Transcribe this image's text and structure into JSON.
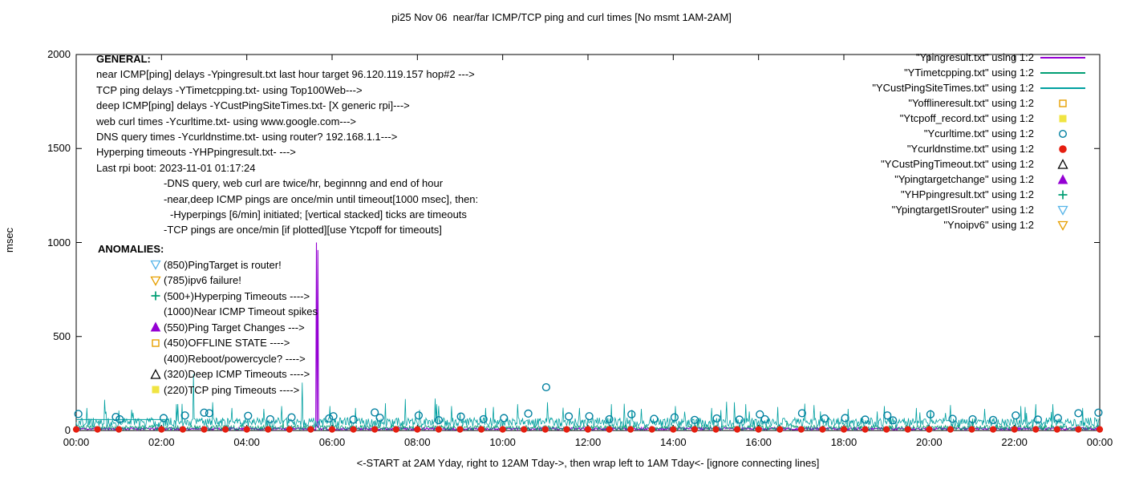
{
  "annotations": {
    "general_title": "GENERAL:",
    "general_lines": [
      {
        "indent": 0,
        "text": "near ICMP[ping] delays -Ypingresult.txt last hour target 96.120.119.157 hop#2 --->"
      },
      {
        "indent": 0,
        "text": "TCP ping delays -YTimetcpping.txt- using Top100Web--->"
      },
      {
        "indent": 0,
        "text": "deep ICMP[ping] delays -YCustPingSiteTimes.txt- [X generic rpi]--->"
      },
      {
        "indent": 0,
        "text": "web curl times -Ycurltime.txt- using www.google.com--->"
      },
      {
        "indent": 0,
        "text": "DNS query times -Ycurldnstime.txt- using router? 192.168.1.1--->"
      },
      {
        "indent": 0,
        "text": "Hyperping timeouts -YHPpingresult.txt- --->"
      },
      {
        "indent": 0,
        "text": "Last rpi boot: 2023-11-01 01:17:24"
      },
      {
        "indent": 1,
        "text": "-DNS query, web curl are twice/hr, beginnng and end of hour"
      },
      {
        "indent": 1,
        "text": "-near,deep ICMP pings are once/min until timeout[1000 msec], then:"
      },
      {
        "indent": 2,
        "text": "-Hyperpings [6/min] initiated; [vertical stacked] ticks are timeouts"
      },
      {
        "indent": 1,
        "text": "-TCP pings are once/min [if plotted][use Ytcpoff for timeouts]"
      }
    ],
    "anomalies_title": "ANOMALIES:",
    "anomaly_lines": [
      {
        "marker": "triangle-down-open",
        "color": "#56b4e9",
        "text": "(850)PingTarget is router!"
      },
      {
        "marker": "triangle-down-open",
        "color": "#e69f00",
        "text": "(785)ipv6 failure!"
      },
      {
        "marker": "plus",
        "color": "#009e73",
        "text": "(500+)Hyperping Timeouts ---->"
      },
      {
        "marker": "none",
        "color": "",
        "text": "(1000)Near ICMP Timeout spikes"
      },
      {
        "marker": "triangle-up-filled",
        "color": "#9400d3",
        "text": "(550)Ping Target Changes --->"
      },
      {
        "marker": "square-open",
        "color": "#e69f00",
        "text": "(450)OFFLINE STATE ---->"
      },
      {
        "marker": "none",
        "color": "",
        "text": "(400)Reboot/powercycle? ---->"
      },
      {
        "marker": "triangle-up-open",
        "color": "#000000",
        "text": "(320)Deep ICMP Timeouts ---->"
      },
      {
        "marker": "square-filled",
        "color": "#f0e442",
        "text": "(220)TCP ping Timeouts ---->"
      }
    ]
  },
  "legend": [
    {
      "label": "\"Ypingresult.txt\" using 1:2",
      "sample": "line",
      "color": "#9400d3"
    },
    {
      "label": "\"YTimetcpping.txt\" using 1:2",
      "sample": "line",
      "color": "#009e73"
    },
    {
      "label": "\"YCustPingSiteTimes.txt\" using 1:2",
      "sample": "line",
      "color": "#00a0a0"
    },
    {
      "label": "\"Yofflineresult.txt\" using 1:2",
      "sample": "square-open",
      "color": "#e69f00"
    },
    {
      "label": "\"Ytcpoff_record.txt\" using 1:2",
      "sample": "square-filled",
      "color": "#f0e442"
    },
    {
      "label": "\"Ycurltime.txt\" using 1:2",
      "sample": "circle-open",
      "color": "#0080a0"
    },
    {
      "label": "\"Ycurldnstime.txt\" using 1:2",
      "sample": "circle-filled",
      "color": "#e51e10"
    },
    {
      "label": "\"YCustPingTimeout.txt\" using 1:2",
      "sample": "triangle-up-open",
      "color": "#000000"
    },
    {
      "label": "\"Ypingtargetchange\" using 1:2",
      "sample": "triangle-up-filled",
      "color": "#9400d3"
    },
    {
      "label": "\"YHPpingresult.txt\" using 1:2",
      "sample": "plus",
      "color": "#009e73"
    },
    {
      "label": "\"YpingtargetISrouter\" using 1:2",
      "sample": "triangle-down-open",
      "color": "#56b4e9"
    },
    {
      "label": "\"Ynoipv6\" using 1:2",
      "sample": "triangle-down-open",
      "color": "#e69f00"
    }
  ],
  "chart_data": {
    "type": "line",
    "title": "pi25 Nov 06  near/far ICMP/TCP ping and curl times [No msmt 1AM-2AM]",
    "xlabel": "<-START at 2AM Yday, right to 12AM Tday->, then wrap left to 1AM Tday<- [ignore connecting lines]",
    "ylabel": "msec",
    "ylim": [
      0,
      2000
    ],
    "xlim_hours": [
      0,
      24
    ],
    "y_tick_values": [
      0,
      500,
      1000,
      1500,
      2000
    ],
    "x_tick_labels": [
      "00:00",
      "02:00",
      "04:00",
      "06:00",
      "08:00",
      "10:00",
      "12:00",
      "14:00",
      "16:00",
      "18:00",
      "20:00",
      "22:00",
      "00:00"
    ],
    "grid": false,
    "legend_position": "top-right",
    "series": [
      {
        "name": "Ypingresult.txt",
        "kind": "line",
        "color": "#9400d3",
        "width": 1.1,
        "seed": 11,
        "baseline": [
          3,
          16
        ],
        "spikes": [
          [
            5.63,
            1000
          ],
          [
            5.67,
            960
          ]
        ]
      },
      {
        "name": "YTimetcpping.txt",
        "kind": "line",
        "color": "#009e73",
        "width": 0.8,
        "seed": 23,
        "baseline": [
          2,
          28
        ],
        "spike_prob": 0.004,
        "spike_range": [
          40,
          80
        ],
        "spikes": []
      },
      {
        "name": "YCustPingSiteTimes.txt",
        "kind": "line",
        "color": "#00a0a0",
        "width": 0.8,
        "seed": 37,
        "baseline": [
          18,
          68
        ],
        "spike_prob": 0.012,
        "spike_range": [
          85,
          170
        ],
        "spikes": [
          [
            0.25,
            120
          ],
          [
            0.7,
            100
          ],
          [
            1.3,
            110
          ],
          [
            2.35,
            140
          ],
          [
            2.75,
            300
          ],
          [
            3.2,
            150
          ],
          [
            3.65,
            120
          ],
          [
            4.4,
            115
          ],
          [
            5.3,
            255
          ],
          [
            5.95,
            130
          ],
          [
            6.55,
            120
          ],
          [
            7.25,
            145
          ],
          [
            8.05,
            110
          ],
          [
            8.8,
            130
          ],
          [
            9.6,
            120
          ],
          [
            10.35,
            140
          ],
          [
            11.05,
            150
          ],
          [
            11.8,
            120
          ],
          [
            12.55,
            140
          ],
          [
            13.25,
            115
          ],
          [
            14.05,
            130
          ],
          [
            14.9,
            120
          ],
          [
            15.7,
            140
          ],
          [
            16.45,
            125
          ],
          [
            17.3,
            135
          ],
          [
            18.1,
            115
          ],
          [
            18.95,
            130
          ],
          [
            19.7,
            120
          ],
          [
            20.5,
            135
          ],
          [
            21.3,
            115
          ],
          [
            22.15,
            130
          ],
          [
            22.9,
            140
          ],
          [
            23.6,
            120
          ]
        ]
      },
      {
        "name": "YpingtargetISrouter-flatline",
        "kind": "line",
        "color": "#00a0a0",
        "width": 1,
        "flat": {
          "from": 0,
          "to": 2.17,
          "value": 58
        }
      },
      {
        "name": "Ycurltime.txt",
        "kind": "scatter",
        "marker": "circle-open",
        "color": "#0080a0",
        "points": [
          [
            0.05,
            88
          ],
          [
            0.93,
            72
          ],
          [
            1.02,
            60
          ],
          [
            2.05,
            66
          ],
          [
            2.55,
            80
          ],
          [
            3.0,
            95
          ],
          [
            3.12,
            92
          ],
          [
            4.03,
            78
          ],
          [
            4.55,
            60
          ],
          [
            5.05,
            70
          ],
          [
            5.93,
            64
          ],
          [
            6.03,
            76
          ],
          [
            6.5,
            58
          ],
          [
            7.0,
            96
          ],
          [
            7.12,
            68
          ],
          [
            8.03,
            80
          ],
          [
            8.5,
            55
          ],
          [
            9.02,
            74
          ],
          [
            9.55,
            60
          ],
          [
            10.03,
            66
          ],
          [
            10.6,
            90
          ],
          [
            11.02,
            230
          ],
          [
            11.55,
            75
          ],
          [
            12.03,
            76
          ],
          [
            12.5,
            60
          ],
          [
            13.02,
            86
          ],
          [
            13.55,
            62
          ],
          [
            14.03,
            70
          ],
          [
            14.5,
            56
          ],
          [
            15.02,
            64
          ],
          [
            15.55,
            58
          ],
          [
            16.03,
            86
          ],
          [
            16.15,
            60
          ],
          [
            17.02,
            92
          ],
          [
            17.55,
            64
          ],
          [
            18.03,
            66
          ],
          [
            18.5,
            58
          ],
          [
            19.02,
            80
          ],
          [
            19.15,
            54
          ],
          [
            20.03,
            86
          ],
          [
            20.55,
            62
          ],
          [
            21.02,
            60
          ],
          [
            21.5,
            56
          ],
          [
            22.03,
            80
          ],
          [
            22.55,
            58
          ],
          [
            23.02,
            66
          ],
          [
            23.5,
            92
          ],
          [
            23.97,
            95
          ]
        ]
      },
      {
        "name": "Ycurldnstime.txt",
        "kind": "scatter",
        "marker": "circle-filled",
        "color": "#e51e10",
        "generator": {
          "start": 0,
          "end": 24,
          "step": 0.5,
          "value": 6,
          "skip": [
            1.1,
            1.9
          ]
        }
      }
    ]
  }
}
